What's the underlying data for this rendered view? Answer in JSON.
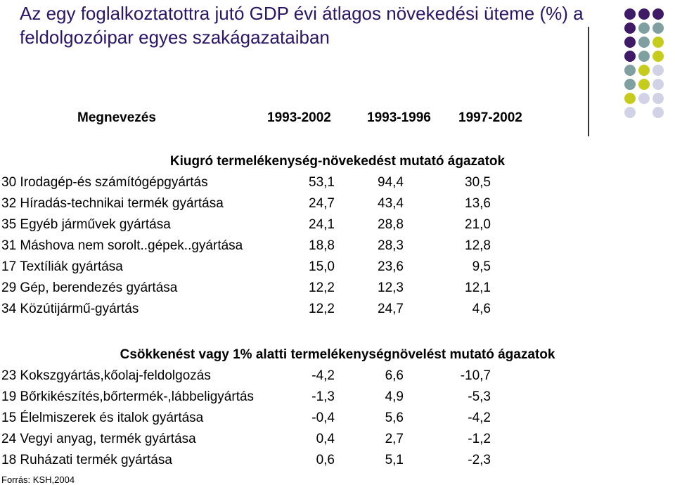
{
  "title": "Az egy foglalkoztatottra jutó GDP évi átlagos növekedési üteme (%) a feldolgozóipar egyes szakágazataiban",
  "table": {
    "headers": {
      "name": "Megnevezés",
      "p1": "1993-2002",
      "p2": "1993-1996",
      "p3": "1997-2002"
    },
    "sections": [
      {
        "title": "Kiugró termelékenység-növekedést mutató ágazatok",
        "rows": [
          {
            "name": "30 Irodagép-és számítógépgyártás",
            "v1": "53,1",
            "v2": "94,4",
            "v3": "30,5"
          },
          {
            "name": "32 Híradás-technikai termék gyártása",
            "v1": "24,7",
            "v2": "43,4",
            "v3": "13,6"
          },
          {
            "name": "35 Egyéb járművek gyártása",
            "v1": "24,1",
            "v2": "28,8",
            "v3": "21,0"
          },
          {
            "name": "31 Máshova nem sorolt..gépek..gyártása",
            "v1": "18,8",
            "v2": "28,3",
            "v3": "12,8"
          },
          {
            "name": "17 Textíliák gyártása",
            "v1": "15,0",
            "v2": "23,6",
            "v3": "9,5"
          },
          {
            "name": "29 Gép, berendezés gyártása",
            "v1": "12,2",
            "v2": "12,3",
            "v3": "12,1"
          },
          {
            "name": "34 Közútijármű-gyártás",
            "v1": "12,2",
            "v2": "24,7",
            "v3": "4,6"
          }
        ]
      },
      {
        "title": "Csökkenést vagy 1% alatti termelékenységnövelést mutató ágazatok",
        "rows": [
          {
            "name": "23 Kokszgyártás,kőolaj-feldolgozás",
            "v1": "-4,2",
            "v2": "6,6",
            "v3": "-10,7"
          },
          {
            "name": "19 Bőrkikészítés,bőrtermék-,lábbeligyártás",
            "v1": "-1,3",
            "v2": "4,9",
            "v3": "-5,3"
          },
          {
            "name": "15 Élelmiszerek és italok gyártása",
            "v1": "-0,4",
            "v2": "5,6",
            "v3": "-4,2"
          },
          {
            "name": "24 Vegyi anyag, termék gyártása",
            "v1": "0,4",
            "v2": "2,7",
            "v3": "-1,2"
          },
          {
            "name": "18 Ruházati termék gyártása",
            "v1": "0,6",
            "v2": "5,1",
            "v3": "-2,3"
          }
        ]
      }
    ]
  },
  "source": "Forrás: KSH,2004",
  "colors": {
    "title": "#2a1566",
    "dot_purple": "#3f1a66",
    "dot_teal": "#7f9fa0",
    "dot_yellow": "#c6cc1e",
    "dot_lavender": "#d2d2e6"
  }
}
